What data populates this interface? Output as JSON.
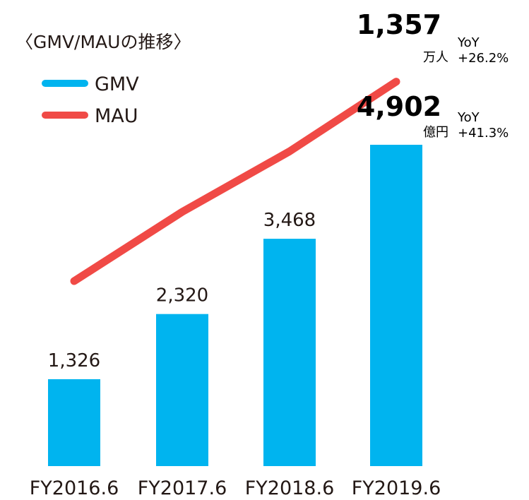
{
  "chart_data": {
    "type": "bar",
    "title": "〈GMV/MAUの推移〉",
    "categories": [
      "FY2016.6",
      "FY2017.6",
      "FY2018.6",
      "FY2019.6"
    ],
    "series": [
      {
        "name": "GMV",
        "type": "bar",
        "values": [
          1326,
          2320,
          3468,
          4902
        ],
        "value_labels": [
          "1,326",
          "2,320",
          "3,468",
          "4,902"
        ],
        "unit": "億円",
        "yoy": "YoY +41.3%",
        "color": "#00b4ef"
      },
      {
        "name": "MAU",
        "type": "line",
        "values": [
          550,
          830,
          1075,
          1357
        ],
        "value_label": "1,357",
        "unit": "万人",
        "yoy": "YoY +26.2%",
        "color": "#f04a46"
      }
    ],
    "legend_position": "top-left",
    "grid": false,
    "ylim": [
      0,
      5000
    ]
  }
}
